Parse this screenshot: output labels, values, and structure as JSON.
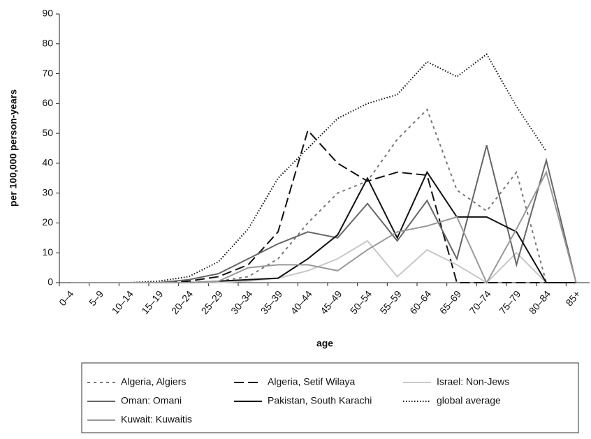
{
  "chart_data": {
    "type": "line",
    "x_label": "age",
    "y_label": "per 100,000 person-years",
    "categories": [
      "0–4",
      "5–9",
      "10–14",
      "15–19",
      "20–24",
      "25–29",
      "30–34",
      "35–39",
      "40–44",
      "45–49",
      "50–54",
      "55–59",
      "60–64",
      "65–69",
      "70–74",
      "75–79",
      "80–84",
      "85+"
    ],
    "ylim": [
      0,
      90
    ],
    "yticks": [
      0,
      10,
      20,
      30,
      40,
      50,
      60,
      70,
      80,
      90
    ],
    "legend": "bottom",
    "series": [
      {
        "name": "Algeria, Algiers",
        "color": "#777777",
        "dash": "4,5",
        "values": [
          0,
          0,
          0,
          0,
          0,
          0.5,
          2,
          8,
          20,
          30,
          34,
          48,
          58,
          31,
          24,
          37,
          0,
          0
        ]
      },
      {
        "name": "Algeria, Setif Wilaya",
        "color": "#111111",
        "dash": "14,6",
        "values": [
          0,
          0,
          0,
          0,
          0.5,
          2,
          6,
          17,
          51,
          40,
          34,
          37,
          36,
          0,
          0,
          0,
          0,
          0
        ]
      },
      {
        "name": "Israel: Non-Jews",
        "color": "#c8c8c8",
        "dash": "",
        "values": [
          0,
          0,
          0,
          0,
          0,
          0,
          0.5,
          1.5,
          4,
          8,
          14,
          2,
          11,
          6,
          0,
          10,
          0,
          0
        ]
      },
      {
        "name": "Oman: Omani",
        "color": "#666666",
        "dash": "",
        "values": [
          0,
          0,
          0,
          0,
          1,
          3,
          8,
          13,
          17,
          15,
          26.5,
          14,
          27.5,
          8,
          46,
          6,
          41,
          0
        ]
      },
      {
        "name": "Pakistan, South Karachi",
        "color": "#111111",
        "dash": "",
        "values": [
          0,
          0,
          0,
          0,
          0,
          0.5,
          1,
          1.5,
          8,
          16,
          35,
          15,
          37,
          22,
          22,
          17,
          0,
          0
        ]
      },
      {
        "name": "global average",
        "color": "#111111",
        "dash": "1.5,2.5",
        "values": [
          0,
          0,
          0,
          0.5,
          2,
          7,
          18,
          35,
          45,
          55,
          60,
          63,
          74,
          69,
          76.5,
          59,
          44,
          null
        ]
      },
      {
        "name": "Kuwait: Kuwaitis",
        "color": "#999999",
        "dash": "",
        "values": [
          0,
          0,
          0,
          0,
          0,
          0.5,
          5,
          6,
          6,
          4,
          11,
          17,
          19,
          22,
          0,
          18,
          37,
          0
        ]
      }
    ]
  }
}
